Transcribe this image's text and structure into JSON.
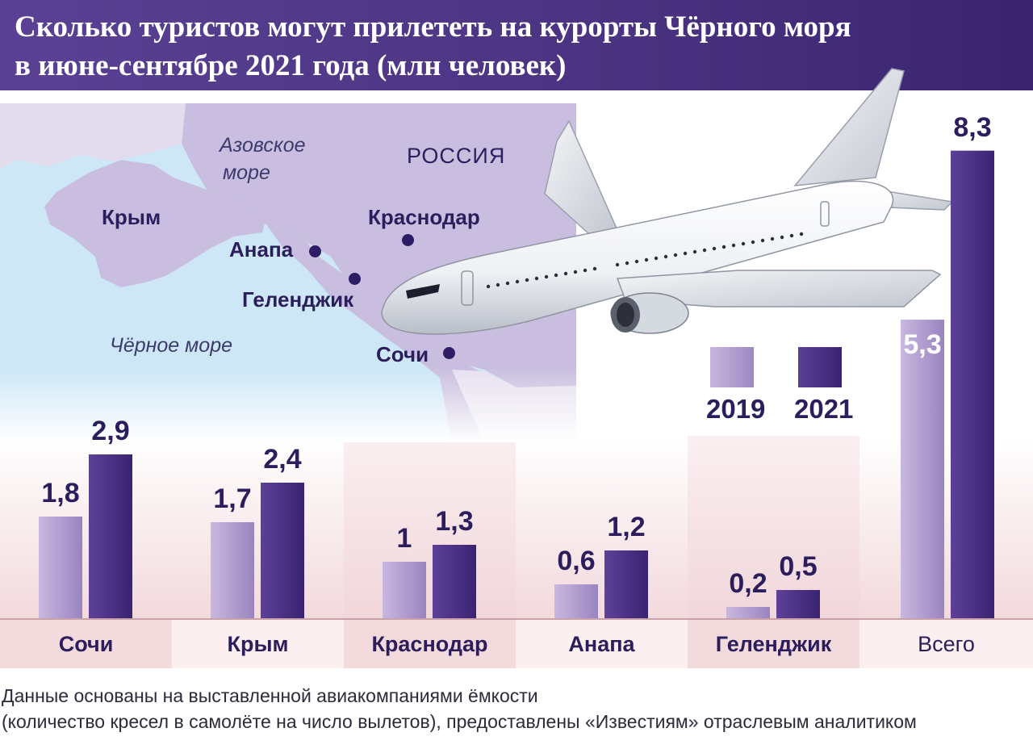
{
  "title_line1": "Сколько туристов могут прилететь на курорты Чёрного моря",
  "title_line2": "в июне-сентябре 2021 года (млн человек)",
  "map": {
    "sea_azov_line1": "Азовское",
    "sea_azov_line2": "море",
    "country": "РОССИЯ",
    "crimea": "Крым",
    "krasnodar": "Краснодар",
    "anapa": "Анапа",
    "gelendzhik": "Геленджик",
    "sochi": "Сочи",
    "black_sea": "Чёрное море"
  },
  "legend": {
    "y2019": "2019",
    "y2021": "2021"
  },
  "colors": {
    "c2019": "#a993c9",
    "c2021": "#4a2f86",
    "header": "#4a3380",
    "text": "#2c1d5c"
  },
  "chart_data": {
    "type": "bar",
    "title": "Сколько туристов могут прилететь на курорты Чёрного моря в июне-сентябре 2021 года (млн человек)",
    "categories": [
      "Сочи",
      "Крым",
      "Краснодар",
      "Анапа",
      "Геленджик",
      "Всего"
    ],
    "series": [
      {
        "name": "2019",
        "values": [
          1.8,
          1.7,
          1,
          0.6,
          0.2,
          5.3
        ],
        "labels": [
          "1,8",
          "1,7",
          "1",
          "0,6",
          "0,2",
          "5,3"
        ]
      },
      {
        "name": "2021",
        "values": [
          2.9,
          2.4,
          1.3,
          1.2,
          0.5,
          8.3
        ],
        "labels": [
          "2,9",
          "2,4",
          "1,3",
          "1,2",
          "0,5",
          "8,3"
        ]
      }
    ],
    "ylim": [
      0,
      8.3
    ],
    "grid": false,
    "legend": "right"
  },
  "note_line1": "Данные основаны на выставленной авиакомпаниями ёмкости",
  "note_line2": "(количество кресел в самолёте на число вылетов), предоставлены  «Известиям» отраслевым аналитиком"
}
